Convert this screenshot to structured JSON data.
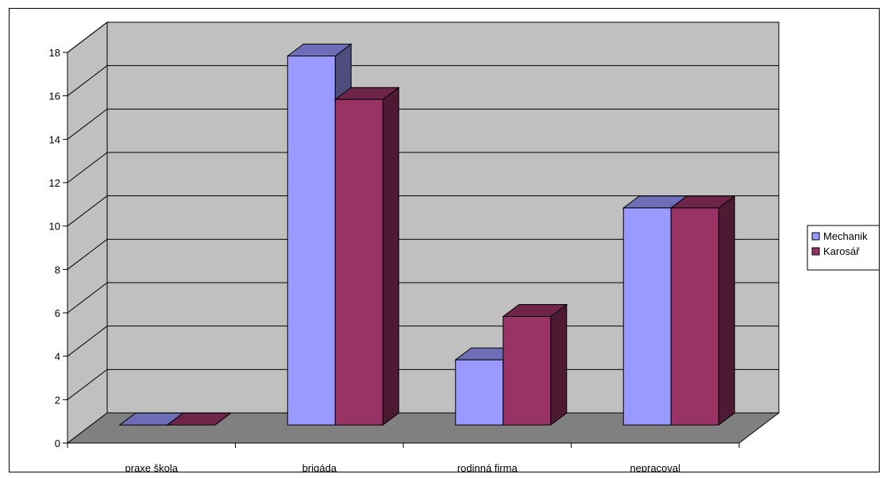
{
  "chart_data": {
    "type": "bar",
    "style": "3d-clustered-column",
    "categories": [
      "praxe škola",
      "brigáda",
      "rodinná firma",
      "nepracoval"
    ],
    "series": [
      {
        "name": "Mechanik",
        "values": [
          0,
          17,
          3,
          10
        ],
        "color": "#9999ff"
      },
      {
        "name": "Karosář",
        "values": [
          0,
          15,
          5,
          10
        ],
        "color": "#993366"
      }
    ],
    "ylim": [
      0,
      18
    ],
    "yticks": [
      0,
      2,
      4,
      6,
      8,
      10,
      12,
      14,
      16,
      18
    ],
    "grid": true,
    "legend": "right",
    "colors": {
      "wall": "#c0c0c0",
      "floor": "#808080",
      "gridline": "#000000"
    }
  }
}
